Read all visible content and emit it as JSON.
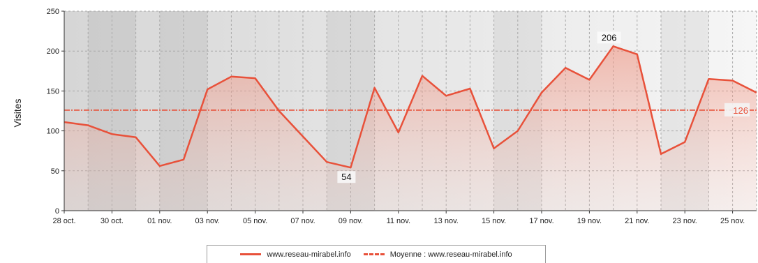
{
  "chart_data": {
    "type": "area",
    "ylabel": "Visites",
    "ylim": [
      0,
      250
    ],
    "yticks": [
      "0",
      "50",
      "100",
      "150",
      "200",
      "250"
    ],
    "xtick_labels": [
      "28 oct.",
      "30 oct.",
      "01 nov.",
      "03 nov.",
      "05 nov.",
      "07 nov.",
      "09 nov.",
      "11 nov.",
      "13 nov.",
      "15 nov.",
      "17 nov.",
      "19 nov.",
      "21 nov.",
      "23 nov.",
      "25 nov."
    ],
    "x": [
      "28 oct.",
      "29 oct.",
      "30 oct.",
      "31 oct.",
      "01 nov.",
      "02 nov.",
      "03 nov.",
      "04 nov.",
      "05 nov.",
      "06 nov.",
      "07 nov.",
      "08 nov.",
      "09 nov.",
      "10 nov.",
      "11 nov.",
      "12 nov.",
      "13 nov.",
      "14 nov.",
      "15 nov.",
      "16 nov.",
      "17 nov.",
      "18 nov.",
      "19 nov.",
      "20 nov.",
      "21 nov.",
      "22 nov.",
      "23 nov.",
      "24 nov.",
      "25 nov.",
      "26 nov."
    ],
    "series": [
      {
        "name": "www.reseau-mirabel.info",
        "values": [
          111,
          107,
          96,
          92,
          56,
          64,
          152,
          168,
          166,
          125,
          93,
          61,
          54,
          154,
          98,
          169,
          144,
          153,
          78,
          100,
          148,
          179,
          164,
          206,
          196,
          71,
          86,
          165,
          163,
          148
        ],
        "color": "#e8513a"
      }
    ],
    "average": {
      "name": "Moyenne : www.reseau-mirabel.info",
      "value": 126,
      "label": "126"
    },
    "data_labels": [
      {
        "index": 12,
        "text": "54"
      },
      {
        "index": 23,
        "text": "206"
      }
    ],
    "weekend_bands": [
      [
        1,
        2
      ],
      [
        4,
        5
      ],
      [
        11,
        12
      ],
      [
        18,
        19
      ],
      [
        25,
        26
      ]
    ],
    "grid": true,
    "legend_position": "bottom-center"
  }
}
